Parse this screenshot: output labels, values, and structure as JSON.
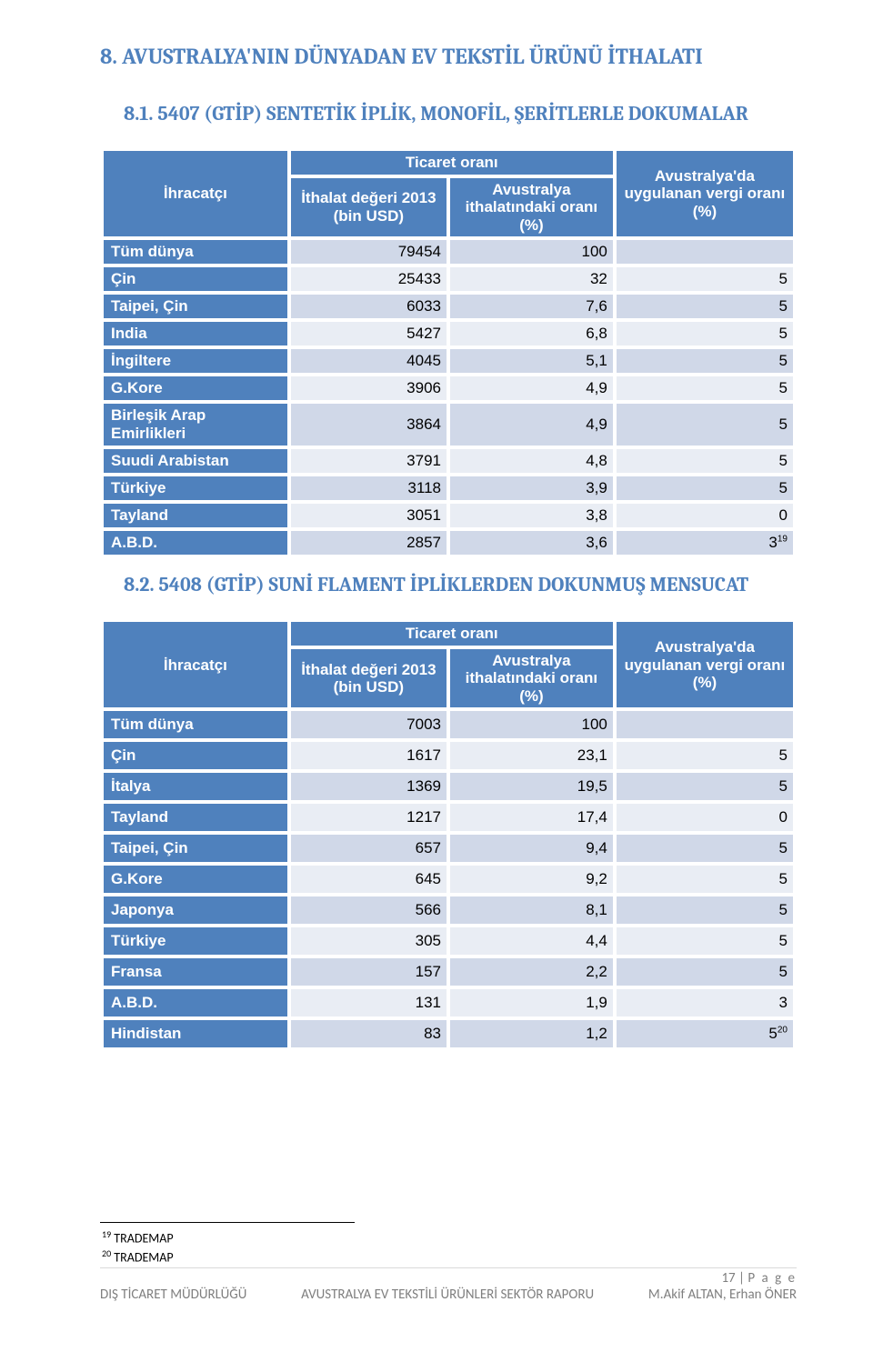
{
  "heading_main": "8.  AVUSTRALYA'NIN DÜNYADAN EV TEKSTİL ÜRÜNÜ İTHALATI",
  "heading_81": "8.1.   5407 (GTİP) SENTETİK İPLİK, MONOFİL, ŞERİTLERLE DOKUMALAR",
  "heading_82": "8.2.   5408 (GTİP) SUNİ FLAMENT İPLİKLERDEN DOKUNMUŞ MENSUCAT",
  "headers": {
    "exporter": "İhracatçı",
    "ticaret": "Ticaret oranı",
    "ithalat": "İthalat değeri 2013 (bin USD)",
    "avustralya_ith": "Avustralya ithalatındaki oranı (%)",
    "vergi": "Avustralya'da uygulanan vergi oranı (%)"
  },
  "table81": {
    "col_widths": [
      "27%",
      "23%",
      "24%",
      "26%"
    ],
    "rows": [
      {
        "label": "Tüm dünya",
        "v1": "79454",
        "v2": "100",
        "v3": ""
      },
      {
        "label": "Çin",
        "v1": "25433",
        "v2": "32",
        "v3": "5"
      },
      {
        "label": "Taipei, Çin",
        "v1": "6033",
        "v2": "7,6",
        "v3": "5"
      },
      {
        "label": "India",
        "v1": "5427",
        "v2": "6,8",
        "v3": "5"
      },
      {
        "label": "İngiltere",
        "v1": "4045",
        "v2": "5,1",
        "v3": "5"
      },
      {
        "label": "G.Kore",
        "v1": "3906",
        "v2": "4,9",
        "v3": "5"
      },
      {
        "label": "Birleşik Arap Emirlikleri",
        "v1": "3864",
        "v2": "4,9",
        "v3": "5"
      },
      {
        "label": "Suudi Arabistan",
        "v1": "3791",
        "v2": "4,8",
        "v3": "5"
      },
      {
        "label": "Türkiye",
        "v1": "3118",
        "v2": "3,9",
        "v3": "5"
      },
      {
        "label": "Tayland",
        "v1": "3051",
        "v2": "3,8",
        "v3": "0"
      },
      {
        "label": "A.B.D.",
        "v1": "2857",
        "v2": "3,6",
        "v3": "3",
        "sup": "19"
      }
    ]
  },
  "table82": {
    "col_widths": [
      "27%",
      "23%",
      "24%",
      "26%"
    ],
    "rows": [
      {
        "label": "Tüm dünya",
        "v1": "7003",
        "v2": "100",
        "v3": ""
      },
      {
        "label": "Çin",
        "v1": "1617",
        "v2": "23,1",
        "v3": "5"
      },
      {
        "label": "İtalya",
        "v1": "1369",
        "v2": "19,5",
        "v3": "5"
      },
      {
        "label": "Tayland",
        "v1": "1217",
        "v2": "17,4",
        "v3": "0"
      },
      {
        "label": "Taipei, Çin",
        "v1": "657",
        "v2": "9,4",
        "v3": "5"
      },
      {
        "label": "G.Kore",
        "v1": "645",
        "v2": "9,2",
        "v3": "5"
      },
      {
        "label": "Japonya",
        "v1": "566",
        "v2": "8,1",
        "v3": "5"
      },
      {
        "label": "Türkiye",
        "v1": "305",
        "v2": "4,4",
        "v3": "5"
      },
      {
        "label": "Fransa",
        "v1": "157",
        "v2": "2,2",
        "v3": "5"
      },
      {
        "label": "A.B.D.",
        "v1": "131",
        "v2": "1,9",
        "v3": "3"
      },
      {
        "label": "Hindistan",
        "v1": "83",
        "v2": "1,2",
        "v3": "5",
        "sup": "20"
      }
    ]
  },
  "footnotes": [
    {
      "num": "19",
      "text": " TRADEMAP"
    },
    {
      "num": "20",
      "text": " TRADEMAP"
    }
  ],
  "footer": {
    "page_num": "17",
    "page_sep": " | ",
    "page_unit": "P a g e",
    "left1": "",
    "left2_a": "DIŞ TİCARET MÜDÜRLÜĞÜ",
    "center2": "AVUSTRALYA EV TEKSTİLİ ÜRÜNLERİ SEKTÖR RAPORU",
    "right2": "M.Akif ALTAN, Erhan ÖNER"
  },
  "colors": {
    "header_bg": "#4f81bd",
    "row_odd": "#d0d8e8",
    "row_even": "#e9edf4",
    "heading_color": "#4f81bd",
    "footer_gray": "#7f7f7f"
  }
}
